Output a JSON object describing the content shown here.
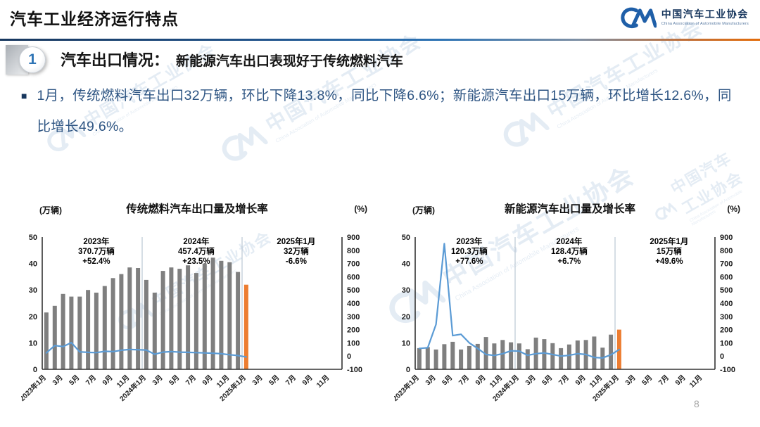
{
  "slide": {
    "title": "汽车工业经济运行特点",
    "page_number": "8"
  },
  "logo": {
    "org_cn": "中国汽车工业协会",
    "org_en": "China Association of Automobile Manufacturers"
  },
  "section": {
    "number": "1",
    "heading": "汽车出口情况：",
    "subheading": "新能源汽车出口表现好于传统燃料汽车"
  },
  "bullet": {
    "marker": "■",
    "text": "1月，传统燃料汽车出口32万辆，环比下降13.8%，同比下降6.6%；新能源汽车出口15万辆，环比增长12.6%，同比增长49.6%。"
  },
  "watermark": {
    "text": "中国汽车工业协会",
    "subtext": "China Association of Automobile Manufacturers"
  },
  "colors": {
    "bar": "#7F7F7F",
    "bar_highlight": "#ED7D31",
    "line": "#5B9BD5",
    "accent_red": "#FF0000",
    "axis": "#333333",
    "separator": "#AEBDCB",
    "heading_blue": "#2E74B5",
    "body_text_blue": "#2E5583"
  },
  "chart_data": [
    {
      "type": "bar+line",
      "title": "传统燃料汽车出口量及增长率",
      "left_axis_label": "(万辆)",
      "right_axis_label": "(%)",
      "left_ylim": [
        0,
        50
      ],
      "right_ylim": [
        -100,
        900
      ],
      "left_axis_ticks": [
        0,
        10,
        20,
        30,
        40,
        50
      ],
      "right_axis_ticks": [
        900,
        800,
        700,
        600,
        500,
        400,
        300,
        200,
        100,
        0,
        -100
      ],
      "x_axis_labels": [
        "2023年1月",
        "3月",
        "5月",
        "7月",
        "9月",
        "11月",
        "2024年1月",
        "3月",
        "5月",
        "7月",
        "9月",
        "11月",
        "2025年1月",
        "3月",
        "5月",
        "7月",
        "9月",
        "11月"
      ],
      "total_months_span": 36,
      "legend": "none",
      "grid": false,
      "categories": [
        "2023年1月",
        "2023年2月",
        "2023年3月",
        "2023年4月",
        "2023年5月",
        "2023年6月",
        "2023年7月",
        "2023年8月",
        "2023年9月",
        "2023年10月",
        "2023年11月",
        "2023年12月",
        "2024年1月",
        "2024年2月",
        "2024年3月",
        "2024年4月",
        "2024年5月",
        "2024年6月",
        "2024年7月",
        "2024年8月",
        "2024年9月",
        "2024年10月",
        "2024年11月",
        "2024年12月",
        "2025年1月"
      ],
      "series": [
        {
          "name": "出口量(万辆)",
          "type": "bar",
          "axis": "left",
          "values": [
            21.5,
            24.0,
            28.5,
            27.5,
            27.5,
            30.0,
            29.0,
            31.5,
            34.5,
            36.0,
            38.5,
            38.3,
            33.8,
            29.0,
            37.2,
            38.5,
            38.0,
            39.3,
            36.4,
            40.0,
            42.2,
            41.0,
            40.5,
            36.8,
            32.0
          ]
        },
        {
          "name": "增长率(%)",
          "type": "line",
          "axis": "right",
          "values": [
            24,
            80,
            72,
            102,
            32,
            28,
            26,
            36,
            34,
            44,
            50,
            48,
            46,
            14,
            30,
            34,
            30,
            28,
            26,
            24,
            22,
            18,
            10,
            4,
            -6.6
          ]
        }
      ],
      "annotations": [
        {
          "line1": "2023年",
          "line2": "370.7万辆",
          "line3": "+52.4%",
          "line3_color": "#000000"
        },
        {
          "line1": "2024年",
          "line2": "457.4万辆",
          "line3": "+23.5%",
          "line3_color": "#000000"
        },
        {
          "line1": "2025年1月",
          "line2": "32万辆",
          "line3": "-6.6%",
          "line3_color": "#FF0000"
        }
      ]
    },
    {
      "type": "bar+line",
      "title": "新能源汽车出口量及增长率",
      "left_axis_label": "(万辆)",
      "right_axis_label": "(%)",
      "left_ylim": [
        0,
        50
      ],
      "right_ylim": [
        -100,
        900
      ],
      "left_axis_ticks": [
        0,
        10,
        20,
        30,
        40,
        50
      ],
      "right_axis_ticks": [
        900,
        800,
        700,
        600,
        500,
        400,
        300,
        200,
        100,
        0,
        -100
      ],
      "x_axis_labels": [
        "2023年1月",
        "3月",
        "5月",
        "7月",
        "9月",
        "11月",
        "2024年1月",
        "3月",
        "5月",
        "7月",
        "9月",
        "11月",
        "2025年1月",
        "3月",
        "5月",
        "7月",
        "9月",
        "11月"
      ],
      "total_months_span": 36,
      "legend": "none",
      "grid": false,
      "categories": [
        "2023年1月",
        "2023年2月",
        "2023年3月",
        "2023年4月",
        "2023年5月",
        "2023年6月",
        "2023年7月",
        "2023年8月",
        "2023年9月",
        "2023年10月",
        "2023年11月",
        "2023年12月",
        "2024年1月",
        "2024年2月",
        "2024年3月",
        "2024年4月",
        "2024年5月",
        "2024年6月",
        "2024年7月",
        "2024年8月",
        "2024年9月",
        "2024年10月",
        "2024年11月",
        "2024年12月",
        "2025年1月"
      ],
      "series": [
        {
          "name": "出口量(万辆)",
          "type": "bar",
          "axis": "left",
          "values": [
            8.0,
            8.4,
            7.5,
            9.5,
            10.4,
            7.5,
            8.8,
            9.6,
            12.2,
            9.8,
            11.1,
            10.2,
            9.8,
            7.6,
            12.0,
            11.4,
            9.9,
            8.0,
            9.4,
            10.9,
            11.1,
            12.4,
            8.2,
            13.1,
            15.0
          ]
        },
        {
          "name": "增长率(%)",
          "type": "line",
          "axis": "right",
          "values": [
            58,
            63,
            240,
            850,
            155,
            165,
            100,
            58,
            12,
            5,
            18,
            40,
            38,
            6,
            18,
            24,
            12,
            0,
            6,
            18,
            12,
            -10,
            -14,
            10,
            49.6
          ]
        }
      ],
      "annotations": [
        {
          "line1": "2023年",
          "line2": "120.3万辆",
          "line3": "+77.6%",
          "line3_color": "#000000"
        },
        {
          "line1": "2024年",
          "line2": "128.4万辆",
          "line3": "+6.7%",
          "line3_color": "#000000"
        },
        {
          "line1": "2025年1月",
          "line2": "15万辆",
          "line3": "+49.6%",
          "line3_color": "#000000"
        }
      ]
    }
  ]
}
